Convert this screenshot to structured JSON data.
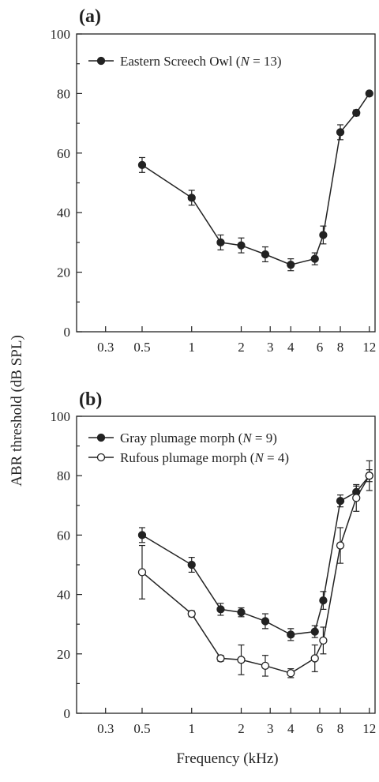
{
  "figure": {
    "ylabel": "ABR threshold (dB SPL)",
    "xlabel": "Frequency (kHz)"
  },
  "chart_data": [
    {
      "type": "line",
      "panel_label": "(a)",
      "x_scale": "log",
      "xlim": [
        0.2,
        13
      ],
      "ylim": [
        0,
        100
      ],
      "x_ticks": [
        0.3,
        0.5,
        1,
        2,
        3,
        4,
        6,
        8,
        12
      ],
      "x_tick_labels": [
        "0.3",
        "0.5",
        "1",
        "2",
        "3",
        "4",
        "6",
        "8",
        "12"
      ],
      "y_ticks": [
        0,
        20,
        40,
        60,
        80,
        100
      ],
      "y_tick_labels": [
        "0",
        "20",
        "40",
        "60",
        "80",
        "100"
      ],
      "legend_position": "top-left",
      "series": [
        {
          "name": "Eastern Screech Owl (N = 13)",
          "legend_prefix": "Eastern Screech Owl (",
          "legend_italic": "N",
          "legend_suffix": " = 13)",
          "marker": "filled-circle",
          "color": "#222222",
          "x": [
            0.5,
            1,
            1.5,
            2,
            2.8,
            4,
            5.6,
            6.3,
            8,
            10,
            12
          ],
          "y": [
            56,
            45,
            30,
            29,
            26,
            22.5,
            24.5,
            32.5,
            67,
            73.5,
            80
          ],
          "err": [
            2.5,
            2.5,
            2.5,
            2.5,
            2.5,
            2,
            2,
            3,
            2.5,
            1,
            0.5
          ]
        }
      ]
    },
    {
      "type": "line",
      "panel_label": "(b)",
      "x_scale": "log",
      "xlim": [
        0.2,
        13
      ],
      "ylim": [
        0,
        100
      ],
      "x_ticks": [
        0.3,
        0.5,
        1,
        2,
        3,
        4,
        6,
        8,
        12
      ],
      "x_tick_labels": [
        "0.3",
        "0.5",
        "1",
        "2",
        "3",
        "4",
        "6",
        "8",
        "12"
      ],
      "y_ticks": [
        0,
        20,
        40,
        60,
        80,
        100
      ],
      "y_tick_labels": [
        "0",
        "20",
        "40",
        "60",
        "80",
        "100"
      ],
      "legend_position": "top-left",
      "series": [
        {
          "name": "Gray plumage morph (N = 9)",
          "legend_prefix": "Gray plumage morph (",
          "legend_italic": "N",
          "legend_suffix": " = 9)",
          "marker": "filled-circle",
          "color": "#222222",
          "x": [
            0.5,
            1,
            1.5,
            2,
            2.8,
            4,
            5.6,
            6.3,
            8,
            10,
            12
          ],
          "y": [
            60,
            50,
            35,
            34,
            31,
            26.5,
            27.5,
            38,
            71.5,
            74.5,
            80
          ],
          "err": [
            2.5,
            2.5,
            2,
            1.5,
            2.5,
            2,
            2,
            3,
            2,
            2,
            2
          ]
        },
        {
          "name": "Rufous plumage morph (N = 4)",
          "legend_prefix": "Rufous plumage morph (",
          "legend_italic": "N",
          "legend_suffix": " = 4)",
          "marker": "open-circle",
          "color": "#222222",
          "x": [
            0.5,
            1,
            1.5,
            2,
            2.8,
            4,
            5.6,
            6.3,
            8,
            10,
            12
          ],
          "y": [
            47.5,
            33.5,
            18.5,
            18,
            16,
            13.5,
            18.5,
            24.5,
            56.5,
            72.5,
            80
          ],
          "err": [
            9,
            1,
            1,
            5,
            3.5,
            1.5,
            4.5,
            4.5,
            6,
            4.5,
            5
          ]
        }
      ]
    }
  ]
}
